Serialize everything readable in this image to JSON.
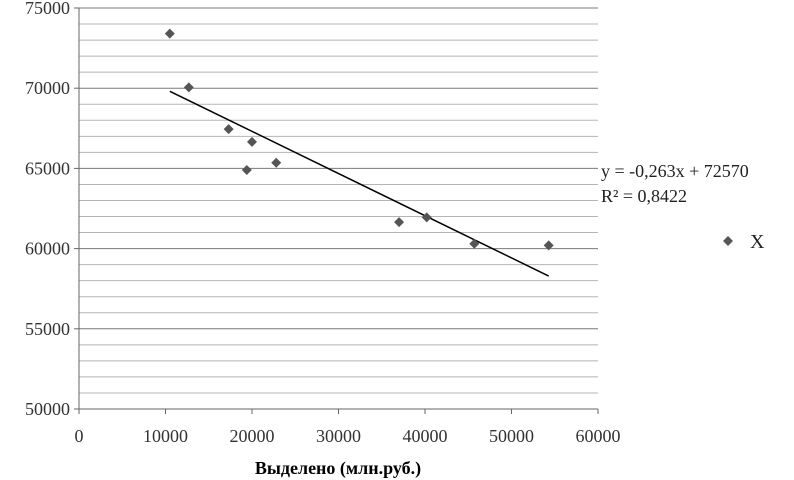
{
  "chart_data": {
    "type": "scatter",
    "title": "",
    "xlabel": "Выделено (млн.руб.)",
    "ylabel": "",
    "xlim": [
      0,
      60000
    ],
    "ylim": [
      50000,
      75000
    ],
    "x_ticks": [
      "0",
      "10000",
      "20000",
      "30000",
      "40000",
      "50000",
      "60000"
    ],
    "y_ticks": [
      "50000",
      "55000",
      "60000",
      "65000",
      "70000",
      "75000"
    ],
    "grid": "horizontal major and minor",
    "legend_position": "right",
    "series": [
      {
        "name": "X",
        "marker": "diamond",
        "color": "#555555",
        "points": [
          {
            "x": 10500,
            "y": 73400
          },
          {
            "x": 12700,
            "y": 70050
          },
          {
            "x": 17300,
            "y": 67450
          },
          {
            "x": 20000,
            "y": 66650
          },
          {
            "x": 19400,
            "y": 64900
          },
          {
            "x": 22800,
            "y": 65350
          },
          {
            "x": 37000,
            "y": 61650
          },
          {
            "x": 40200,
            "y": 61950
          },
          {
            "x": 45700,
            "y": 60300
          },
          {
            "x": 54300,
            "y": 60200
          }
        ]
      }
    ],
    "trendline": {
      "slope": -0.263,
      "intercept": 72570,
      "x_start": 10500,
      "x_end": 54300,
      "color": "#000000",
      "equation": "y = -0,263x + 72570",
      "r_squared": "R² = 0,8422"
    }
  }
}
